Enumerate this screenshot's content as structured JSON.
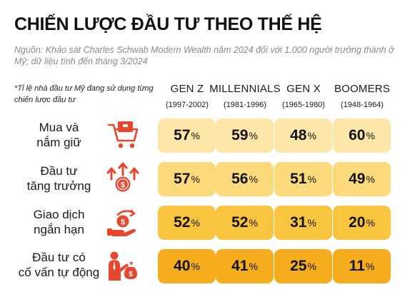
{
  "title": "CHIẾN LƯỢC ĐẦU TƯ THEO THẾ HỆ",
  "source": "Nguồn: Khảo sát Charles Schwab Modern Wealth năm 2024 đối với 1.000 người trưởng thành ở Mỹ; dữ liệu tính đến tháng 3/2024",
  "note": "*Tỉ lệ nhà đầu tư Mỹ đang sử dụng từng chiến lược đầu tư",
  "colors": {
    "accent": "#e8472e",
    "row_fills": [
      "#fde6a8",
      "#fcd97a",
      "#f9c43e",
      "#f6ad1d"
    ]
  },
  "chart_data": {
    "type": "table",
    "unit": "%",
    "columns": [
      {
        "name": "GEN Z",
        "years": "(1997-2002)"
      },
      {
        "name": "MILLENNIALS",
        "years": "(1981-1996)"
      },
      {
        "name": "GEN X",
        "years": "(1965-1980)"
      },
      {
        "name": "BOOMERS",
        "years": "(1948-1964)"
      }
    ],
    "rows": [
      {
        "label_line1": "Mua và",
        "label_line2": "nắm giữ",
        "icon": "shopping-cart-icon",
        "values": [
          57,
          59,
          48,
          60
        ]
      },
      {
        "label_line1": "Đầu tư",
        "label_line2": "tăng trưởng",
        "icon": "growth-coin-icon",
        "values": [
          57,
          56,
          51,
          49
        ]
      },
      {
        "label_line1": "Giao dịch",
        "label_line2": "ngắn hạn",
        "icon": "hand-coin-exchange-icon",
        "values": [
          52,
          52,
          31,
          20
        ]
      },
      {
        "label_line1": "Đầu tư có",
        "label_line2": "cố vấn tự động",
        "icon": "advisor-money-bag-icon",
        "values": [
          40,
          41,
          25,
          11
        ]
      }
    ]
  }
}
